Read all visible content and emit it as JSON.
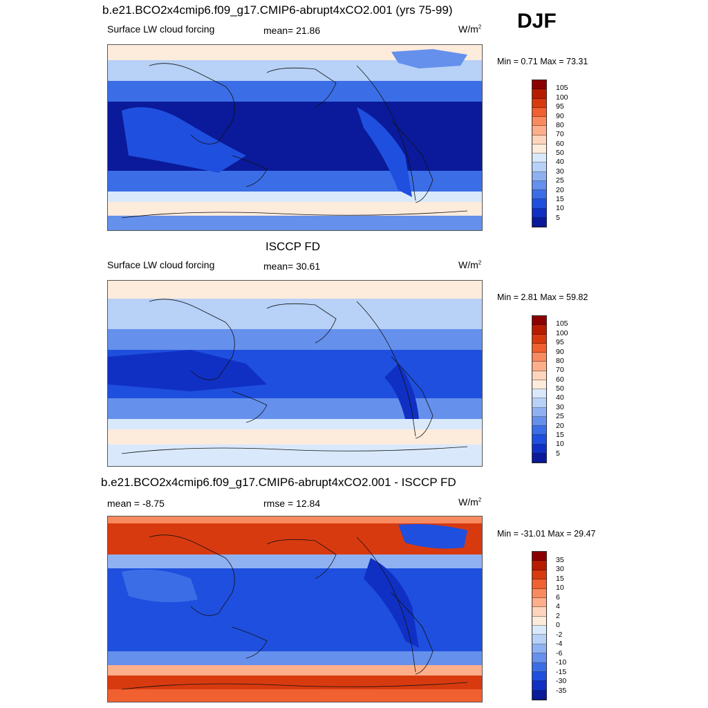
{
  "season": "DJF",
  "panels": [
    {
      "title": "b.e21.BCO2x4cmip6.f09_g17.CMIP6-abrupt4xCO2.001 (yrs 75-99)",
      "left_label": "Surface LW cloud forcing",
      "center_label": "mean=  21.86",
      "units": "W/m",
      "units_sup": "2",
      "minmax": "Min =   0.71 Max =  73.31"
    },
    {
      "title": "ISCCP FD",
      "left_label": "Surface LW cloud forcing",
      "center_label": "mean=  30.61",
      "units": "W/m",
      "units_sup": "2",
      "minmax": "Min =   2.81 Max =  59.82"
    },
    {
      "title": "b.e21.BCO2x4cmip6.f09_g17.CMIP6-abrupt4xCO2.001 - ISCCP FD",
      "left_label": "mean =  -8.75",
      "center_label": "rmse =  12.84",
      "units": "W/m",
      "units_sup": "2",
      "minmax": "Min = -31.01 Max =  29.47"
    }
  ],
  "colorbars": {
    "absolute": {
      "labels": [
        "105",
        "100",
        "95",
        "90",
        "80",
        "70",
        "60",
        "50",
        "40",
        "30",
        "25",
        "20",
        "15",
        "10",
        "5"
      ],
      "colors": [
        "#8b0000",
        "#b71c00",
        "#d83a10",
        "#f06030",
        "#f88a60",
        "#fcaf8a",
        "#fdd5bd",
        "#fdebdc",
        "#d9e9fb",
        "#b7d1f7",
        "#8fb1f2",
        "#6590ec",
        "#3b6ee6",
        "#1f4fde",
        "#1030c4",
        "#0a1a9a"
      ]
    },
    "difference": {
      "labels": [
        "35",
        "30",
        "15",
        "10",
        "6",
        "4",
        "2",
        "0",
        "-2",
        "-4",
        "-6",
        "-10",
        "-15",
        "-30",
        "-35"
      ],
      "colors": [
        "#8b0000",
        "#b71c00",
        "#d83a10",
        "#f06030",
        "#f88a60",
        "#fcaf8a",
        "#fdd5bd",
        "#fdebdc",
        "#d9e9fb",
        "#b7d1f7",
        "#8fb1f2",
        "#6590ec",
        "#3b6ee6",
        "#1f4fde",
        "#1030c4",
        "#0a1a9a"
      ]
    }
  }
}
